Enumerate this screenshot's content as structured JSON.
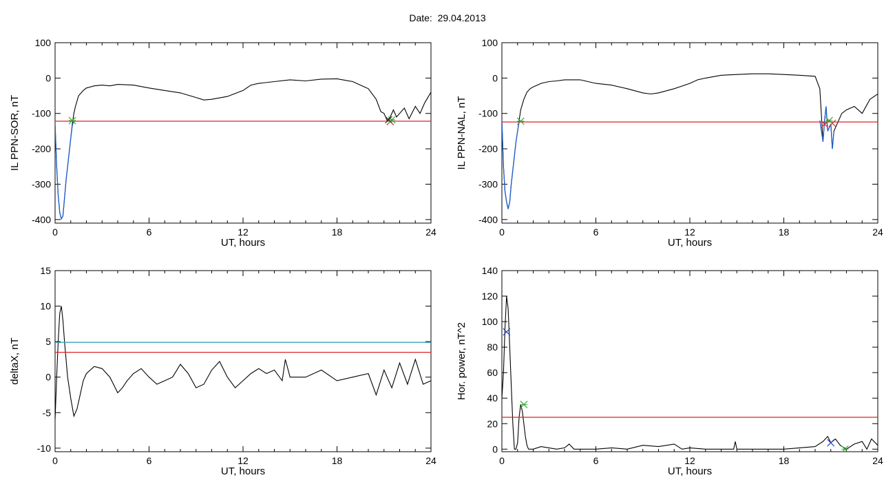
{
  "title": "Date:  29.04.2013",
  "chart_data": [
    {
      "type": "line",
      "ylabel": "IL PPN-SOR, nT",
      "xlabel": "UT, hours",
      "xlim": [
        0,
        24
      ],
      "ylim": [
        -410,
        100
      ],
      "xticks": [
        "0",
        "6",
        "12",
        "18",
        "24"
      ],
      "yticks": [
        "100",
        "0",
        "-100",
        "-200",
        "-300",
        "-400"
      ],
      "grid": false,
      "series": [
        {
          "color": "#000000",
          "x": [
            0,
            0.1,
            0.2,
            0.3,
            0.4,
            0.5,
            0.6,
            0.7,
            0.8,
            0.9,
            1.0,
            1.1,
            1.2,
            1.3,
            1.5,
            1.8,
            2.0,
            2.5,
            3.0,
            3.5,
            4.0,
            5.0,
            6.0,
            7.0,
            8.0,
            9.0,
            9.5,
            10.0,
            11.0,
            12.0,
            12.5,
            13.0,
            14.0,
            15.0,
            16.0,
            17.0,
            18.0,
            19.0,
            20.0,
            20.5,
            20.8,
            21.0,
            21.2,
            21.4,
            21.6,
            21.8,
            22.0,
            22.3,
            22.6,
            23.0,
            23.3,
            23.6,
            24.0
          ],
          "y": [
            -130,
            -250,
            -330,
            -380,
            -398,
            -390,
            -340,
            -290,
            -250,
            -210,
            -170,
            -130,
            -100,
            -80,
            -50,
            -35,
            -28,
            -22,
            -20,
            -22,
            -18,
            -20,
            -28,
            -35,
            -42,
            -55,
            -62,
            -60,
            -52,
            -35,
            -20,
            -15,
            -10,
            -5,
            -8,
            -3,
            -2,
            -10,
            -30,
            -60,
            -95,
            -100,
            -120,
            -110,
            -90,
            -110,
            -100,
            -85,
            -115,
            -80,
            -100,
            -70,
            -40
          ]
        },
        {
          "color": "#1f5fd0",
          "x": [
            0,
            0.1,
            0.2,
            0.3,
            0.4,
            0.5,
            0.6,
            0.7,
            0.8,
            0.9,
            1.0,
            1.1,
            1.2
          ],
          "y": [
            -130,
            -250,
            -330,
            -380,
            -398,
            -390,
            -340,
            -290,
            -250,
            -210,
            -170,
            -135,
            -120
          ]
        },
        {
          "color": "#dd2222",
          "x": [
            0,
            24
          ],
          "y": [
            -122,
            -122
          ]
        }
      ],
      "markers": [
        {
          "color": "#dd2222",
          "x": 21.4,
          "y": -123
        },
        {
          "color": "#33aa33",
          "x": 1.1,
          "y": -120
        },
        {
          "color": "#33aa33",
          "x": 21.5,
          "y": -118
        },
        {
          "color": "#333333",
          "x": 21.3,
          "y": -118
        }
      ]
    },
    {
      "type": "line",
      "ylabel": "IL PPN-NAL, nT",
      "xlabel": "UT, hours",
      "xlim": [
        0,
        24
      ],
      "ylim": [
        -410,
        100
      ],
      "xticks": [
        "0",
        "6",
        "12",
        "18",
        "24"
      ],
      "yticks": [
        "100",
        "0",
        "-100",
        "-200",
        "-300",
        "-400"
      ],
      "grid": false,
      "series": [
        {
          "color": "#000000",
          "x": [
            0,
            0.1,
            0.2,
            0.3,
            0.4,
            0.5,
            0.6,
            0.7,
            0.8,
            0.9,
            1.0,
            1.1,
            1.2,
            1.4,
            1.6,
            1.8,
            2.0,
            2.5,
            3.0,
            3.5,
            4.0,
            5.0,
            6.0,
            7.0,
            8.0,
            9.0,
            9.5,
            10.0,
            11.0,
            12.0,
            12.5,
            13.0,
            14.0,
            15.0,
            16.0,
            17.0,
            18.0,
            19.0,
            20.0,
            20.3,
            20.5,
            20.6,
            20.7,
            20.8,
            21.0,
            21.1,
            21.2,
            21.4,
            21.7,
            22.0,
            22.5,
            23.0,
            23.5,
            24.0
          ],
          "y": [
            -120,
            -250,
            -320,
            -350,
            -370,
            -350,
            -300,
            -260,
            -220,
            -180,
            -150,
            -120,
            -90,
            -60,
            -40,
            -30,
            -25,
            -15,
            -10,
            -8,
            -5,
            -5,
            -15,
            -20,
            -30,
            -42,
            -45,
            -42,
            -30,
            -15,
            -5,
            0,
            8,
            10,
            12,
            12,
            10,
            8,
            5,
            -30,
            -180,
            -120,
            -80,
            -150,
            -130,
            -200,
            -150,
            -130,
            -100,
            -90,
            -80,
            -100,
            -60,
            -45
          ]
        },
        {
          "color": "#1f5fd0",
          "x": [
            0,
            0.1,
            0.2,
            0.3,
            0.4,
            0.5,
            0.6,
            0.7,
            0.8,
            0.9,
            1.0,
            1.1
          ],
          "y": [
            -120,
            -250,
            -320,
            -350,
            -370,
            -350,
            -300,
            -260,
            -220,
            -180,
            -150,
            -125
          ]
        },
        {
          "color": "#1f5fd0",
          "x": [
            20.3,
            20.5,
            20.6,
            20.7,
            20.8,
            21.0,
            21.1,
            21.2
          ],
          "y": [
            -120,
            -180,
            -120,
            -80,
            -150,
            -130,
            -200,
            -150
          ]
        },
        {
          "color": "#dd2222",
          "x": [
            0,
            24
          ],
          "y": [
            -124,
            -124
          ]
        }
      ],
      "markers": [
        {
          "color": "#dd2222",
          "x": 20.6,
          "y": -130
        },
        {
          "color": "#dd2222",
          "x": 21.1,
          "y": -128
        },
        {
          "color": "#33aa33",
          "x": 1.2,
          "y": -122
        },
        {
          "color": "#33aa33",
          "x": 20.9,
          "y": -120
        }
      ]
    },
    {
      "type": "line",
      "ylabel": "deltaX, nT",
      "xlabel": "UT, hours",
      "xlim": [
        0,
        24
      ],
      "ylim": [
        -10.5,
        15
      ],
      "xticks": [
        "0",
        "6",
        "12",
        "18",
        "24"
      ],
      "yticks": [
        "15",
        "10",
        "5",
        "0",
        "-5",
        "-10"
      ],
      "grid": false,
      "series": [
        {
          "color": "#000000",
          "x": [
            0,
            0.1,
            0.2,
            0.3,
            0.4,
            0.5,
            0.6,
            0.8,
            1.0,
            1.2,
            1.4,
            1.6,
            1.8,
            2.0,
            2.5,
            3.0,
            3.5,
            4.0,
            4.3,
            4.6,
            5.0,
            5.5,
            6.0,
            6.5,
            7.0,
            7.5,
            8.0,
            8.5,
            9.0,
            9.5,
            10.0,
            10.5,
            11.0,
            11.5,
            12.0,
            12.5,
            13.0,
            13.5,
            14.0,
            14.5,
            14.7,
            15.0,
            16.0,
            17.0,
            18.0,
            19.0,
            20.0,
            20.5,
            21.0,
            21.5,
            22.0,
            22.5,
            23.0,
            23.5,
            24.0
          ],
          "y": [
            -6,
            0,
            5,
            9,
            10,
            8,
            5,
            0,
            -3,
            -5.5,
            -4.5,
            -2.5,
            -0.5,
            0.5,
            1.5,
            1.2,
            0,
            -2.2,
            -1.5,
            -0.5,
            0.5,
            1.2,
            0,
            -1,
            -0.5,
            0,
            1.8,
            0.5,
            -1.5,
            -1,
            1,
            2.2,
            0,
            -1.5,
            -0.5,
            0.5,
            1.2,
            0.5,
            1,
            -0.5,
            2.5,
            0,
            0,
            1,
            -0.5,
            0,
            0.5,
            -2.5,
            1,
            -1.5,
            2,
            -1,
            2.5,
            -1,
            -0.5
          ]
        },
        {
          "color": "#3aa0c0",
          "x": [
            0,
            24
          ],
          "y": [
            4.9,
            4.9
          ]
        },
        {
          "color": "#dd2222",
          "x": [
            0,
            24
          ],
          "y": [
            3.5,
            3.5
          ]
        }
      ],
      "markers": []
    },
    {
      "type": "line",
      "ylabel": "Hor. power, nT^2",
      "xlabel": "UT, hours",
      "xlim": [
        0,
        24
      ],
      "ylim": [
        -2,
        140
      ],
      "xticks": [
        "0",
        "6",
        "12",
        "18",
        "24"
      ],
      "yticks": [
        "140",
        "120",
        "100",
        "80",
        "60",
        "40",
        "20",
        "0"
      ],
      "grid": false,
      "series": [
        {
          "color": "#000000",
          "x": [
            0,
            0.1,
            0.2,
            0.3,
            0.4,
            0.5,
            0.6,
            0.7,
            0.8,
            0.9,
            1.0,
            1.1,
            1.2,
            1.3,
            1.4,
            1.5,
            1.6,
            1.7,
            1.8,
            2.0,
            2.5,
            3.0,
            3.5,
            4.0,
            4.3,
            4.6,
            5.0,
            6.0,
            7.0,
            8.0,
            9.0,
            10.0,
            11.0,
            11.5,
            12.0,
            13.0,
            14.0,
            14.8,
            14.9,
            15.0,
            16.0,
            17.0,
            18.0,
            19.0,
            20.0,
            20.5,
            20.8,
            21.0,
            21.3,
            21.6,
            22.0,
            22.5,
            23.0,
            23.3,
            23.6,
            24.0
          ],
          "y": [
            40,
            60,
            95,
            120,
            110,
            80,
            50,
            20,
            0,
            0,
            5,
            25,
            35,
            30,
            20,
            10,
            3,
            0,
            0,
            0,
            2,
            1,
            0,
            1,
            4,
            0,
            0,
            0,
            1,
            0,
            3,
            2,
            4,
            0,
            1,
            0,
            0,
            0,
            6,
            0,
            0,
            0,
            0,
            1,
            2,
            6,
            10,
            5,
            8,
            3,
            0,
            4,
            6,
            0,
            8,
            3
          ]
        }
      ],
      "hlines": [
        {
          "color": "#dd2222",
          "y": 25
        }
      ],
      "markers": [
        {
          "color": "#2244cc",
          "x": 0.3,
          "y": 92
        },
        {
          "color": "#33aa33",
          "x": 1.4,
          "y": 35
        },
        {
          "color": "#2244cc",
          "x": 21.0,
          "y": 5
        },
        {
          "color": "#33aa33",
          "x": 21.9,
          "y": 0
        }
      ]
    }
  ]
}
